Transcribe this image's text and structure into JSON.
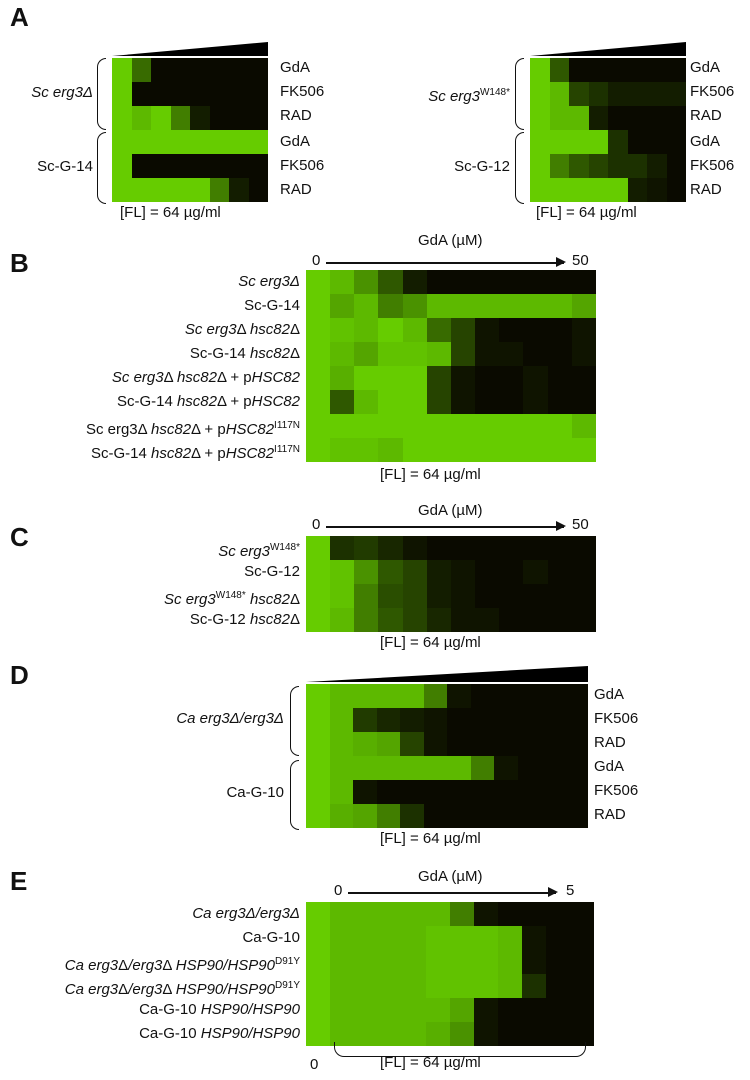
{
  "colors": {
    "high_growth": "#66cc00",
    "no_growth": "#0a0a00"
  },
  "fl_label": "[FL] = 64 µg/ml",
  "panels": {
    "A": {
      "letter": "A",
      "left": {
        "groups": [
          {
            "strain": "Sc erg3Δ",
            "rows": [
              "GdA",
              "FK506",
              "RAD"
            ]
          },
          {
            "strain": "Sc-G-14",
            "rows": [
              "GdA",
              "FK506",
              "RAD"
            ]
          }
        ]
      },
      "right": {
        "groups": [
          {
            "strain": "Sc erg3W148*",
            "rows": [
              "GdA",
              "FK506",
              "RAD"
            ]
          },
          {
            "strain": "Sc-G-12",
            "rows": [
              "GdA",
              "FK506",
              "RAD"
            ]
          }
        ]
      }
    },
    "B": {
      "letter": "B",
      "axis_title": "GdA (µM)",
      "x_start": "0",
      "x_end": "50",
      "rows": [
        "Sc erg3Δ",
        "Sc-G-14",
        "Sc erg3Δ hsc82Δ",
        "Sc-G-14 hsc82Δ",
        "Sc erg3Δ hsc82Δ + pHSC82",
        "Sc-G-14 hsc82Δ + pHSC82",
        "Sc erg3Δ hsc82Δ + pHSC82I117N",
        "Sc-G-14 hsc82Δ + pHSC82I117N"
      ]
    },
    "C": {
      "letter": "C",
      "axis_title": "GdA (µM)",
      "x_start": "0",
      "x_end": "50",
      "rows": [
        "Sc erg3W148*",
        "Sc-G-12",
        "Sc erg3W148* hsc82Δ",
        "Sc-G-12 hsc82Δ"
      ]
    },
    "D": {
      "letter": "D",
      "groups": [
        {
          "strain": "Ca erg3Δ/erg3Δ",
          "rows": [
            "GdA",
            "FK506",
            "RAD"
          ]
        },
        {
          "strain": "Ca-G-10",
          "rows": [
            "GdA",
            "FK506",
            "RAD"
          ]
        }
      ]
    },
    "E": {
      "letter": "E",
      "axis_title": "GdA (µM)",
      "x_start": "0",
      "x_end": "5",
      "bottom_zero": "0",
      "rows": [
        "Ca erg3Δ/erg3Δ",
        "Ca-G-10",
        "Ca erg3Δ/erg3Δ HSP90/HSP90D91Y",
        "Ca erg3Δ/erg3Δ HSP90/HSP90D91Y",
        "Ca-G-10 HSP90/HSP90",
        "Ca-G-10 HSP90/HSP90"
      ]
    }
  },
  "chart_data": [
    {
      "type": "heatmap",
      "title": "A (left)",
      "xlabel": "drug concentration gradient",
      "note": "growth 0-1",
      "rows": [
        "Sc erg3Δ GdA",
        "Sc erg3Δ FK506",
        "Sc erg3Δ RAD",
        "Sc-G-14 GdA",
        "Sc-G-14 FK506",
        "Sc-G-14 RAD"
      ],
      "values": [
        [
          1,
          0.5,
          0,
          0,
          0,
          0,
          0,
          0
        ],
        [
          1,
          0,
          0,
          0,
          0,
          0,
          0,
          0
        ],
        [
          1,
          0.9,
          1,
          0.6,
          0.1,
          0,
          0,
          0
        ],
        [
          1,
          1,
          1,
          1,
          1,
          1,
          1,
          1
        ],
        [
          1,
          0,
          0,
          0,
          0,
          0,
          0,
          0
        ],
        [
          1,
          1,
          1,
          1,
          1,
          0.6,
          0.1,
          0
        ]
      ]
    },
    {
      "type": "heatmap",
      "title": "A (right)",
      "rows": [
        "Sc erg3W148* GdA",
        "Sc erg3W148* FK506",
        "Sc erg3W148* RAD",
        "Sc-G-12 GdA",
        "Sc-G-12 FK506",
        "Sc-G-12 RAD"
      ],
      "values": [
        [
          1,
          0.4,
          0,
          0,
          0,
          0,
          0,
          0
        ],
        [
          1,
          0.9,
          0.3,
          0.2,
          0.1,
          0.1,
          0.1,
          0.1
        ],
        [
          1,
          0.9,
          0.9,
          0.1,
          0,
          0,
          0,
          0
        ],
        [
          1,
          1,
          1,
          1,
          0.2,
          0,
          0,
          0
        ],
        [
          1,
          0.6,
          0.4,
          0.3,
          0.2,
          0.2,
          0.1,
          0
        ],
        [
          1,
          1,
          1,
          1,
          1,
          0.1,
          0.05,
          0
        ]
      ]
    },
    {
      "type": "heatmap",
      "title": "B",
      "xlabel": "GdA (µM)",
      "xrange": [
        0,
        50
      ],
      "rows": [
        "Sc erg3Δ",
        "Sc-G-14",
        "Sc erg3Δ hsc82Δ",
        "Sc-G-14 hsc82Δ",
        "Sc erg3Δ hsc82Δ + pHSC82",
        "Sc-G-14 hsc82Δ + pHSC82",
        "Sc erg3Δ hsc82Δ + pHSC82I117N",
        "Sc-G-14 hsc82Δ + pHSC82I117N"
      ],
      "values": [
        [
          1,
          0.9,
          0.7,
          0.4,
          0.1,
          0,
          0,
          0,
          0,
          0,
          0,
          0
        ],
        [
          1,
          0.8,
          0.9,
          0.6,
          0.7,
          0.9,
          0.9,
          0.9,
          0.9,
          0.9,
          0.9,
          0.8
        ],
        [
          1,
          0.95,
          0.9,
          1,
          0.9,
          0.5,
          0.3,
          0.05,
          0,
          0,
          0,
          0.05
        ],
        [
          1,
          0.9,
          0.8,
          0.95,
          0.95,
          0.9,
          0.3,
          0.05,
          0.05,
          0,
          0,
          0.05
        ],
        [
          1,
          0.85,
          1,
          1,
          1,
          0.3,
          0.05,
          0,
          0,
          0.05,
          0,
          0
        ],
        [
          1,
          0.4,
          0.9,
          1,
          1,
          0.3,
          0.05,
          0,
          0,
          0.05,
          0,
          0
        ],
        [
          1,
          1,
          1,
          1,
          1,
          1,
          1,
          1,
          1,
          1,
          1,
          0.9
        ],
        [
          1,
          0.95,
          0.95,
          0.9,
          1,
          1,
          1,
          1,
          1,
          1,
          1,
          1
        ]
      ]
    },
    {
      "type": "heatmap",
      "title": "C",
      "xlabel": "GdA (µM)",
      "xrange": [
        0,
        50
      ],
      "rows": [
        "Sc erg3W148*",
        "Sc-G-12",
        "Sc erg3W148* hsc82Δ",
        "Sc-G-12 hsc82Δ"
      ],
      "values": [
        [
          1,
          0.2,
          0.25,
          0.15,
          0.05,
          0,
          0,
          0,
          0,
          0,
          0,
          0
        ],
        [
          1,
          0.95,
          0.7,
          0.4,
          0.3,
          0.1,
          0.05,
          0,
          0,
          0.05,
          0,
          0
        ],
        [
          1,
          0.95,
          0.6,
          0.35,
          0.3,
          0.1,
          0.05,
          0,
          0,
          0,
          0,
          0
        ],
        [
          1,
          0.9,
          0.6,
          0.4,
          0.3,
          0.15,
          0.05,
          0.05,
          0,
          0,
          0,
          0
        ]
      ]
    },
    {
      "type": "heatmap",
      "title": "D",
      "xlabel": "drug concentration gradient",
      "rows": [
        "Ca erg3Δ/erg3Δ GdA",
        "Ca erg3Δ/erg3Δ FK506",
        "Ca erg3Δ/erg3Δ RAD",
        "Ca-G-10 GdA",
        "Ca-G-10 FK506",
        "Ca-G-10 RAD"
      ],
      "values": [
        [
          1,
          0.9,
          0.9,
          0.9,
          0.9,
          0.6,
          0.05,
          0,
          0,
          0,
          0,
          0
        ],
        [
          1,
          0.9,
          0.25,
          0.15,
          0.1,
          0.05,
          0,
          0,
          0,
          0,
          0,
          0
        ],
        [
          1,
          0.9,
          0.85,
          0.8,
          0.3,
          0.05,
          0,
          0,
          0,
          0,
          0,
          0
        ],
        [
          1,
          0.9,
          0.9,
          0.9,
          0.9,
          0.9,
          0.9,
          0.6,
          0.05,
          0,
          0,
          0
        ],
        [
          1,
          0.9,
          0.05,
          0,
          0,
          0,
          0,
          0,
          0,
          0,
          0,
          0
        ],
        [
          1,
          0.85,
          0.8,
          0.6,
          0.2,
          0,
          0,
          0,
          0,
          0,
          0,
          0
        ]
      ]
    },
    {
      "type": "heatmap",
      "title": "E",
      "xlabel": "GdA (µM)",
      "xrange": [
        0,
        5
      ],
      "rows": [
        "Ca erg3Δ/erg3Δ",
        "Ca-G-10",
        "Ca erg3Δ/erg3Δ HSP90/HSP90D91Y",
        "Ca erg3Δ/erg3Δ HSP90/HSP90D91Y",
        "Ca-G-10 HSP90/HSP90",
        "Ca-G-10 HSP90/HSP90"
      ],
      "values": [
        [
          1,
          0.9,
          0.9,
          0.9,
          0.9,
          0.9,
          0.6,
          0.05,
          0,
          0,
          0,
          0
        ],
        [
          1,
          0.9,
          0.9,
          0.9,
          0.9,
          0.95,
          0.95,
          0.95,
          0.9,
          0.05,
          0,
          0
        ],
        [
          1,
          0.9,
          0.9,
          0.9,
          0.9,
          0.95,
          0.95,
          0.95,
          0.9,
          0.05,
          0,
          0
        ],
        [
          1,
          0.9,
          0.9,
          0.9,
          0.9,
          0.95,
          0.95,
          0.95,
          0.9,
          0.2,
          0,
          0
        ],
        [
          1,
          0.9,
          0.9,
          0.9,
          0.9,
          0.9,
          0.8,
          0.05,
          0,
          0,
          0,
          0
        ],
        [
          1,
          0.9,
          0.9,
          0.9,
          0.9,
          0.85,
          0.7,
          0.05,
          0,
          0,
          0,
          0
        ]
      ]
    }
  ]
}
